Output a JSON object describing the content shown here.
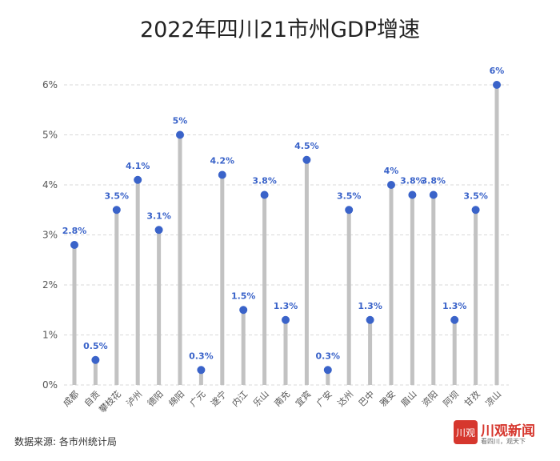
{
  "page": {
    "source": "数据来源: 各市州统计局",
    "logo": {
      "mark": "川观",
      "name": "川观新闻",
      "slogan": "看四川，观天下"
    }
  },
  "chart_data": {
    "type": "lollipop",
    "title": "2022年四川21市州GDP增速",
    "xlabel": "",
    "ylabel": "",
    "ylim": [
      0,
      6
    ],
    "yticks": [
      0,
      1,
      2,
      3,
      4,
      5,
      6
    ],
    "ytick_labels": [
      "0%",
      "1%",
      "2%",
      "3%",
      "4%",
      "5%",
      "6%"
    ],
    "grid": true,
    "categories": [
      "成都",
      "自贡",
      "攀枝花",
      "泸州",
      "德阳",
      "绵阳",
      "广元",
      "遂宁",
      "内江",
      "乐山",
      "南充",
      "宜宾",
      "广安",
      "达州",
      "巴中",
      "雅安",
      "眉山",
      "资阳",
      "阿坝",
      "甘孜",
      "凉山"
    ],
    "values": [
      2.8,
      0.5,
      3.5,
      4.1,
      3.1,
      5,
      0.3,
      4.2,
      1.5,
      3.8,
      1.3,
      4.5,
      0.3,
      3.5,
      1.3,
      4,
      3.8,
      3.8,
      1.3,
      3.5,
      6
    ],
    "value_labels": [
      "2.8%",
      "0.5%",
      "3.5%",
      "4.1%",
      "3.1%",
      "5%",
      "0.3%",
      "4.2%",
      "1.5%",
      "3.8%",
      "1.3%",
      "4.5%",
      "0.3%",
      "3.5%",
      "1.3%",
      "4%",
      "3.8%",
      "3.8%",
      "1.3%",
      "3.5%",
      "6%"
    ],
    "colors": {
      "stem": "#c2c2c2",
      "dot": "#3a63c9",
      "label": "#3a63c9",
      "grid": "#d9d9d9"
    }
  }
}
